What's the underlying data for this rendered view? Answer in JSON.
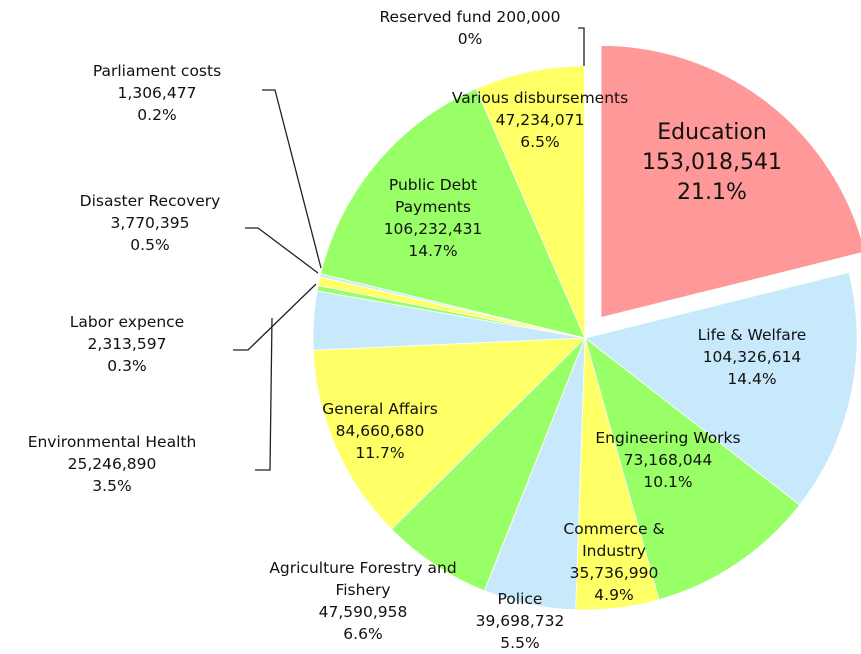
{
  "chart_data": {
    "type": "pie",
    "categories": [
      "Education",
      "Life & Welfare",
      "Engineering Works",
      "Commerce & Industry",
      "Police",
      "Agriculture Forestry and Fishery",
      "General Affairs",
      "Environmental Health",
      "Labor expence",
      "Disaster Recovery",
      "Parliament costs",
      "Public Debt Payments",
      "Various disbursements",
      "Reserved fund"
    ],
    "values": [
      153018541,
      104326614,
      73168044,
      35736990,
      39698732,
      47590958,
      84660680,
      25246890,
      2313597,
      3770395,
      1306477,
      106232431,
      47234071,
      200000
    ],
    "value_labels": [
      "153,018,541",
      "104,326,614",
      "73,168,044",
      "35,736,990",
      "39,698,732",
      "47,590,958",
      "84,660,680",
      "25,246,890",
      "2,313,597",
      "3,770,395",
      "1,306,477",
      "106,232,431",
      "47,234,071",
      "200,000"
    ],
    "percent_labels": [
      "21.1%",
      "14.4%",
      "10.1%",
      "4.9%",
      "5.5%",
      "6.6%",
      "11.7%",
      "3.5%",
      "0.3%",
      "0.5%",
      "0.2%",
      "14.7%",
      "6.5%",
      "0%"
    ],
    "colors": [
      "#ff9999",
      "#c8e9fb",
      "#99ff66",
      "#ffff66",
      "#c8e9fb",
      "#99ff66",
      "#ffff66",
      "#c8e9fb",
      "#99ff66",
      "#ffff66",
      "#c8e9fb",
      "#99ff66",
      "#ffff66",
      "#c8e9fb"
    ],
    "exploded": [
      0
    ]
  }
}
